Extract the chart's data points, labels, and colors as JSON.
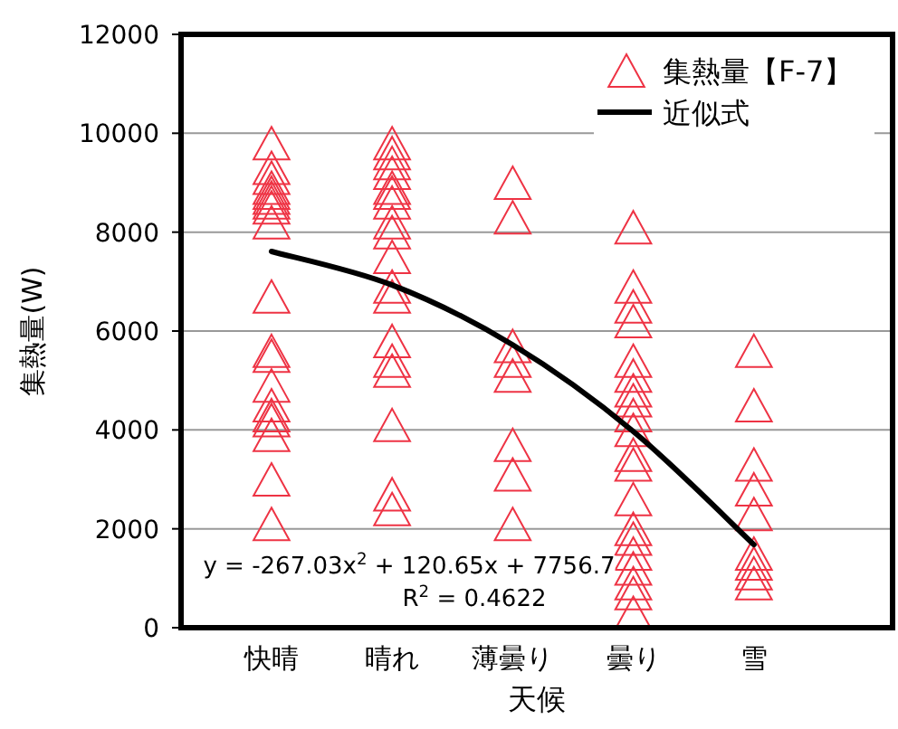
{
  "chart_data": {
    "type": "scatter",
    "xlabel": "天候",
    "ylabel": "集熱量(W)",
    "categories": [
      "快晴",
      "晴れ",
      "薄曇り",
      "曇り",
      "雪"
    ],
    "ylim": [
      0,
      12000
    ],
    "yticks": [
      0,
      2000,
      4000,
      6000,
      8000,
      10000,
      12000
    ],
    "grid": "y",
    "legend": "top right",
    "annotations": [
      "y = -267.03x$^{2}$ + 120.65x + 7756.7",
      "R$^{2}$ = 0.4622"
    ],
    "series": [
      {
        "name": "集熱量【F-7】",
        "type": "scatter",
        "marker": "triangle",
        "color": "#ee3344",
        "x": [
          "快晴",
          "快晴",
          "快晴",
          "快晴",
          "快晴",
          "快晴",
          "快晴",
          "快晴",
          "快晴",
          "快晴",
          "快晴",
          "快晴",
          "快晴",
          "快晴",
          "快晴",
          "快晴",
          "快晴",
          "快晴",
          "快晴",
          "晴れ",
          "晴れ",
          "晴れ",
          "晴れ",
          "晴れ",
          "晴れ",
          "晴れ",
          "晴れ",
          "晴れ",
          "晴れ",
          "晴れ",
          "晴れ",
          "晴れ",
          "晴れ",
          "晴れ",
          "晴れ",
          "晴れ",
          "晴れ",
          "薄曇り",
          "薄曇り",
          "薄曇り",
          "薄曇り",
          "薄曇り",
          "薄曇り",
          "薄曇り",
          "薄曇り",
          "曇り",
          "曇り",
          "曇り",
          "曇り",
          "曇り",
          "曇り",
          "曇り",
          "曇り",
          "曇り",
          "曇り",
          "曇り",
          "曇り",
          "曇り",
          "曇り",
          "曇り",
          "曇り",
          "曇り",
          "曇り",
          "曇り",
          "曇り",
          "雪",
          "雪",
          "雪",
          "雪",
          "雪",
          "雪",
          "雪",
          "雪",
          "雪"
        ],
        "values": [
          9800,
          9300,
          9100,
          8900,
          8800,
          8700,
          8600,
          8500,
          8200,
          6700,
          5600,
          5500,
          4900,
          4500,
          4300,
          4200,
          3900,
          3000,
          2100,
          9800,
          9600,
          9400,
          9200,
          8900,
          8800,
          8600,
          8200,
          8000,
          7500,
          6900,
          6700,
          5800,
          5400,
          5200,
          4100,
          2700,
          2400,
          9000,
          8300,
          5700,
          5400,
          5100,
          3700,
          3100,
          2100,
          8100,
          6900,
          6500,
          6200,
          5400,
          5100,
          4800,
          4600,
          4300,
          4000,
          3500,
          3300,
          2600,
          2000,
          1800,
          1500,
          1200,
          900,
          700,
          300,
          5600,
          4500,
          3300,
          2800,
          2300,
          1500,
          1300,
          1100,
          900
        ]
      },
      {
        "name": "近似式",
        "type": "line",
        "color": "#000000",
        "values": [
          7610,
          6930,
          5720,
          3970,
          1680
        ]
      }
    ]
  }
}
